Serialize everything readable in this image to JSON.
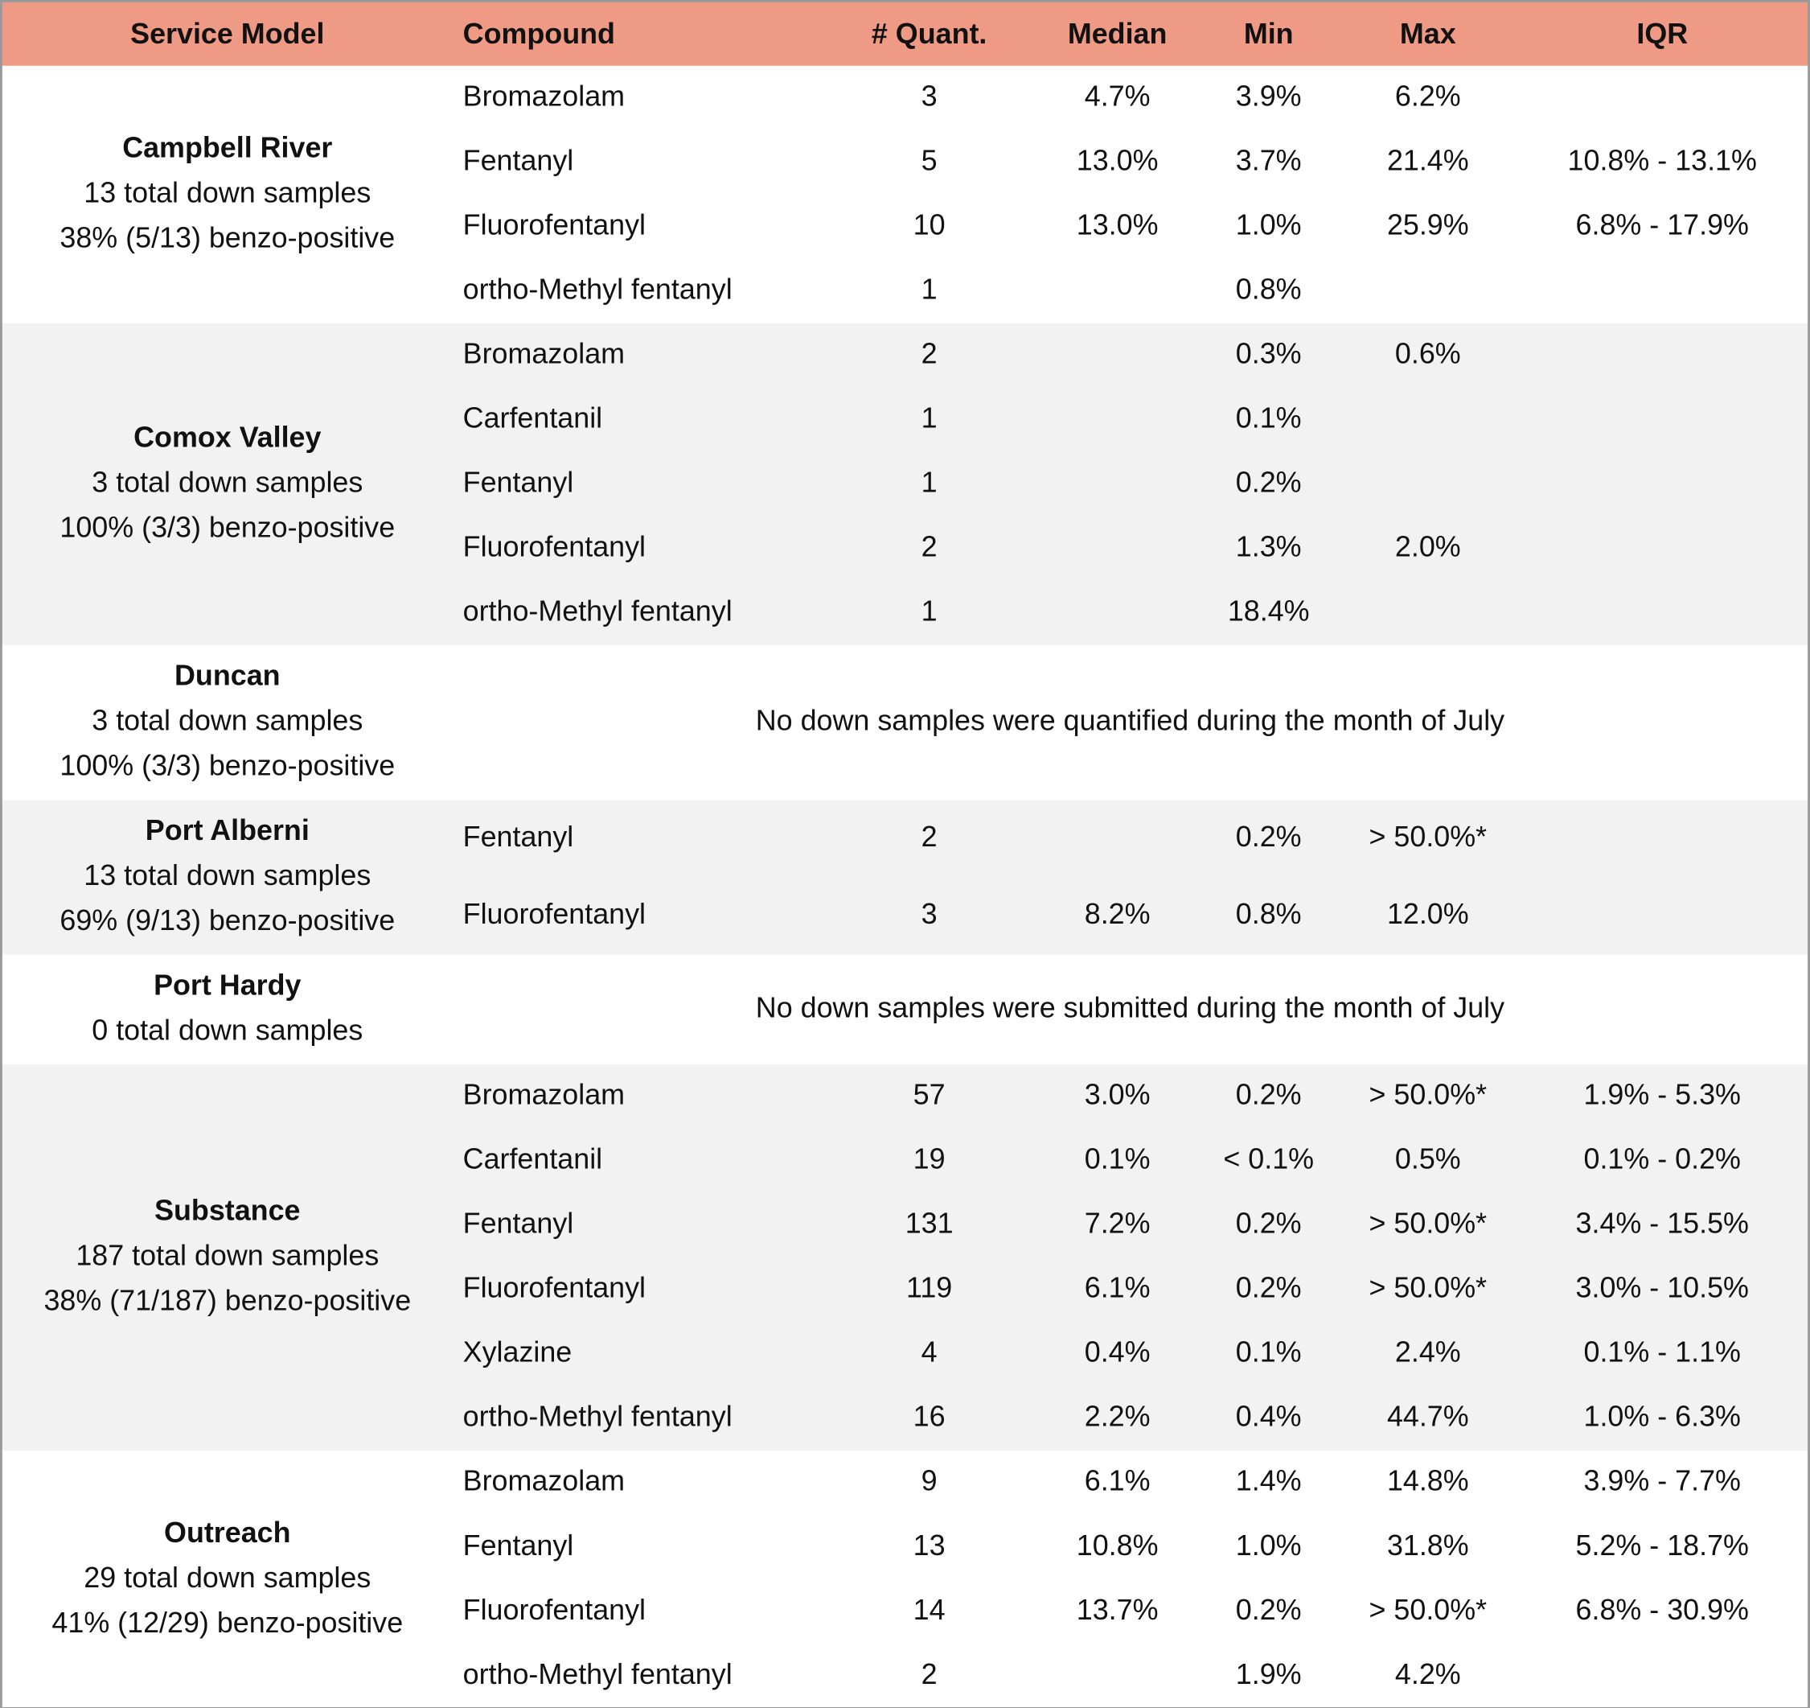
{
  "table": {
    "header": [
      "Service Model",
      "Compound",
      "# Quant.",
      "Median",
      "Min",
      "Max",
      "IQR"
    ],
    "groups": [
      {
        "name": "Campbell River",
        "lines": [
          "13 total down samples",
          "38% (5/13) benzo-positive"
        ],
        "rows": [
          {
            "compound": "Bromazolam",
            "n": 3,
            "median": "4.7%",
            "min": "3.9%",
            "max": "6.2%"
          },
          {
            "compound": "Fentanyl",
            "n": 5,
            "median": "13.0%",
            "min": "3.7%",
            "max": "21.4%",
            "iqr": "10.8% - 13.1%"
          },
          {
            "compound": "Fluorofentanyl",
            "n": 10,
            "median": "13.0%",
            "min": "1.0%",
            "max": "25.9%",
            "iqr": "6.8% - 17.9%"
          },
          {
            "compound": "ortho-Methyl fentanyl",
            "n": 1,
            "min": "0.8%"
          }
        ]
      },
      {
        "name": "Comox Valley",
        "lines": [
          "3 total down samples",
          "100% (3/3) benzo-positive"
        ],
        "rows": [
          {
            "compound": "Bromazolam",
            "n": 2,
            "min": "0.3%",
            "max": "0.6%"
          },
          {
            "compound": "Carfentanil",
            "n": 1,
            "min": "0.1%"
          },
          {
            "compound": "Fentanyl",
            "n": 1,
            "min": "0.2%"
          },
          {
            "compound": "Fluorofentanyl",
            "n": 2,
            "min": "1.3%",
            "max": "2.0%"
          },
          {
            "compound": "ortho-Methyl fentanyl",
            "n": 1,
            "min": "18.4%"
          }
        ]
      },
      {
        "name": "Duncan",
        "lines": [
          "3 total down samples",
          "100% (3/3) benzo-positive"
        ],
        "note": "No down samples were quantified during the month of July"
      },
      {
        "name": "Port Alberni",
        "lines": [
          "13 total down samples",
          "69% (9/13) benzo-positive"
        ],
        "rows": [
          {
            "compound": "Fentanyl",
            "n": 2,
            "min": "0.2%",
            "max": "> 50.0%*"
          },
          {
            "compound": "Fluorofentanyl",
            "n": 3,
            "median": "8.2%",
            "min": "0.8%",
            "max": "12.0%"
          }
        ]
      },
      {
        "name": "Port Hardy",
        "lines": [
          "0 total down samples"
        ],
        "note": "No down samples were submitted during the month of July"
      },
      {
        "name": "Substance",
        "lines": [
          "187 total down samples",
          "38% (71/187) benzo-positive"
        ],
        "rows": [
          {
            "compound": "Bromazolam",
            "n": 57,
            "median": "3.0%",
            "min": "0.2%",
            "max": "> 50.0%*",
            "iqr": "1.9% - 5.3%"
          },
          {
            "compound": "Carfentanil",
            "n": 19,
            "median": "0.1%",
            "min": "< 0.1%",
            "max": "0.5%",
            "iqr": "0.1% - 0.2%"
          },
          {
            "compound": "Fentanyl",
            "n": 131,
            "median": "7.2%",
            "min": "0.2%",
            "max": "> 50.0%*",
            "iqr": "3.4% - 15.5%"
          },
          {
            "compound": "Fluorofentanyl",
            "n": 119,
            "median": "6.1%",
            "min": "0.2%",
            "max": "> 50.0%*",
            "iqr": "3.0% - 10.5%"
          },
          {
            "compound": "Xylazine",
            "n": 4,
            "median": "0.4%",
            "min": "0.1%",
            "max": "2.4%",
            "iqr": "0.1% - 1.1%"
          },
          {
            "compound": "ortho-Methyl fentanyl",
            "n": 16,
            "median": "2.2%",
            "min": "0.4%",
            "max": "44.7%",
            "iqr": "1.0% - 6.3%"
          }
        ]
      },
      {
        "name": "Outreach",
        "lines": [
          "29 total down samples",
          "41% (12/29) benzo-positive"
        ],
        "rows": [
          {
            "compound": "Bromazolam",
            "n": 9,
            "median": "6.1%",
            "min": "1.4%",
            "max": "14.8%",
            "iqr": "3.9% - 7.7%"
          },
          {
            "compound": "Fentanyl",
            "n": 13,
            "median": "10.8%",
            "min": "1.0%",
            "max": "31.8%",
            "iqr": "5.2% - 18.7%"
          },
          {
            "compound": "Fluorofentanyl",
            "n": 14,
            "median": "13.7%",
            "min": "0.2%",
            "max": "> 50.0%*",
            "iqr": "6.8% - 30.9%"
          },
          {
            "compound": "ortho-Methyl fentanyl",
            "n": 2,
            "min": "1.9%",
            "max": "4.2%"
          }
        ]
      }
    ]
  }
}
